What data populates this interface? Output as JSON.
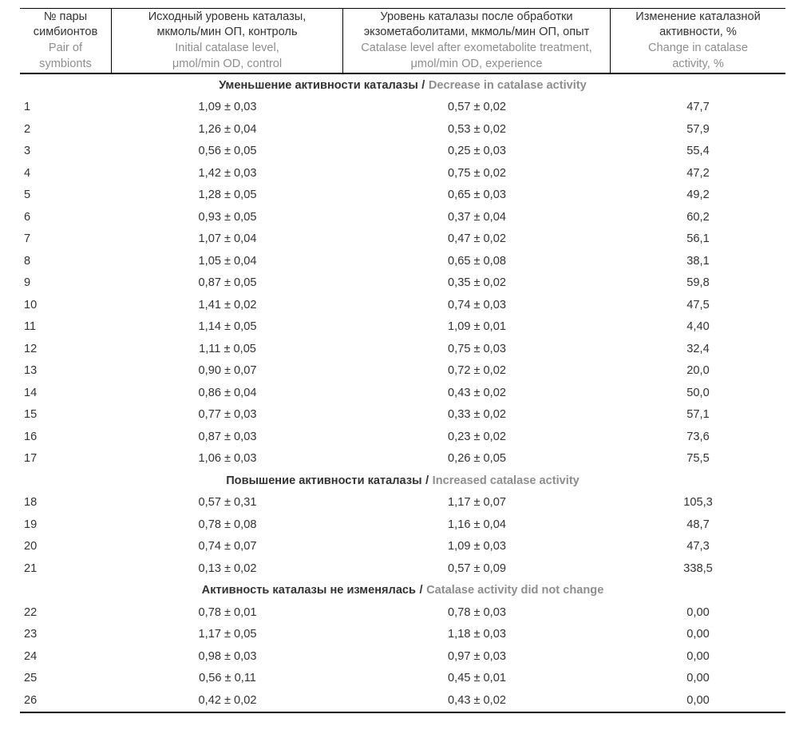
{
  "colors": {
    "text_dark": "#333333",
    "text_gray": "#8e8e8e",
    "border": "#000000",
    "background": "#ffffff"
  },
  "table": {
    "header": {
      "columns": [
        {
          "id": "pair-number",
          "ru_lines": [
            "№ пары",
            "симбионтов"
          ],
          "en_lines": [
            "Pair of",
            "symbionts"
          ]
        },
        {
          "id": "control-level",
          "ru_lines": [
            "Исходный уровень каталазы,",
            "мкмоль/мин ОП, контроль"
          ],
          "en_lines": [
            "Initial catalase level,",
            "μmol/min OD, control"
          ]
        },
        {
          "id": "experiment-level",
          "ru_lines": [
            "Уровень каталазы после обработки",
            "экзометаболитами, мкмоль/мин ОП, опыт"
          ],
          "en_lines": [
            "Catalase level after exometabolite treatment,",
            "μmol/min OD, experience"
          ]
        },
        {
          "id": "change-percent",
          "ru_lines": [
            "Изменение каталазной",
            "активности, %"
          ],
          "en_lines": [
            "Change in catalase",
            "activity, %"
          ]
        }
      ]
    },
    "section_separator": "/",
    "sections": [
      {
        "id": "decrease",
        "title_ru": "Уменьшение активности каталазы",
        "title_en": "Decrease in catalase activity",
        "rows": [
          [
            "1",
            "1,09 ± 0,03",
            "0,57 ± 0,02",
            "47,7"
          ],
          [
            "2",
            "1,26 ± 0,04",
            "0,53 ± 0,02",
            "57,9"
          ],
          [
            "3",
            "0,56 ± 0,05",
            "0,25 ± 0,03",
            "55,4"
          ],
          [
            "4",
            "1,42 ± 0,03",
            "0,75 ± 0,02",
            "47,2"
          ],
          [
            "5",
            "1,28 ± 0,05",
            "0,65 ± 0,03",
            "49,2"
          ],
          [
            "6",
            "0,93 ± 0,05",
            "0,37 ± 0,04",
            "60,2"
          ],
          [
            "7",
            "1,07 ± 0,04",
            "0,47 ± 0,02",
            "56,1"
          ],
          [
            "8",
            "1,05 ± 0,04",
            "0,65 ± 0,08",
            "38,1"
          ],
          [
            "9",
            "0,87 ± 0,05",
            "0,35 ± 0,02",
            "59,8"
          ],
          [
            "10",
            "1,41 ± 0,02",
            "0,74 ± 0,03",
            "47,5"
          ],
          [
            "11",
            "1,14 ± 0,05",
            "1,09 ± 0,01",
            "4,40"
          ],
          [
            "12",
            "1,11 ± 0,05",
            "0,75 ± 0,03",
            "32,4"
          ],
          [
            "13",
            "0,90 ± 0,07",
            "0,72 ± 0,02",
            "20,0"
          ],
          [
            "14",
            "0,86 ± 0,04",
            "0,43 ± 0,02",
            "50,0"
          ],
          [
            "15",
            "0,77 ± 0,03",
            "0,33 ± 0,02",
            "57,1"
          ],
          [
            "16",
            "0,87 ± 0,03",
            "0,23 ± 0,02",
            "73,6"
          ],
          [
            "17",
            "1,06 ± 0,03",
            "0,26 ± 0,05",
            "75,5"
          ]
        ]
      },
      {
        "id": "increase",
        "title_ru": "Повышение активности каталазы",
        "title_en": "Increased catalase activity",
        "rows": [
          [
            "18",
            "0,57 ± 0,31",
            "1,17 ± 0,07",
            "105,3"
          ],
          [
            "19",
            "0,78 ± 0,08",
            "1,16 ± 0,04",
            "48,7"
          ],
          [
            "20",
            "0,74 ± 0,07",
            "1,09 ± 0,03",
            "47,3"
          ],
          [
            "21",
            "0,13 ± 0,02",
            "0,57 ± 0,09",
            "338,5"
          ]
        ]
      },
      {
        "id": "no-change",
        "title_ru": "Активность каталазы не изменялась",
        "title_en": "Catalase activity did not change",
        "rows": [
          [
            "22",
            "0,78 ± 0,01",
            "0,78 ± 0,03",
            "0,00"
          ],
          [
            "23",
            "1,17 ± 0,05",
            "1,18 ± 0,03",
            "0,00"
          ],
          [
            "24",
            "0,98 ± 0,03",
            "0,97 ± 0,03",
            "0,00"
          ],
          [
            "25",
            "0,56 ± 0,11",
            "0,45 ± 0,01",
            "0,00"
          ],
          [
            "26",
            "0,42 ± 0,02",
            "0,43 ± 0,02",
            "0,00"
          ]
        ]
      }
    ]
  }
}
